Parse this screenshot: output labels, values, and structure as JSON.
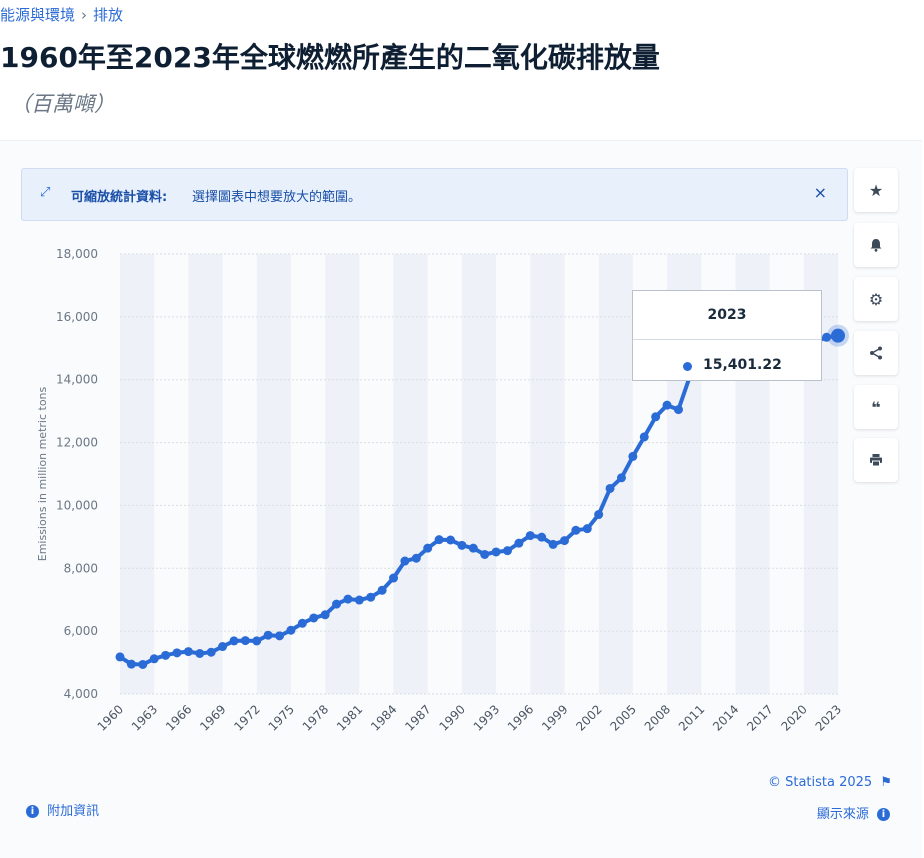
{
  "breadcrumb": {
    "parent": "能源與環境",
    "separator": "›",
    "current": "排放"
  },
  "title": "1960年至2023年全球燃燃所產生的二氧化碳排放量",
  "subtitle": "（百萬噸）",
  "zoom_banner": {
    "label": "可縮放統計資料",
    "text": "選擇圖表中想要放大的範圍。",
    "close": "×"
  },
  "tools": [
    {
      "name": "favorite",
      "icon": "★"
    },
    {
      "name": "alert",
      "icon": "bell"
    },
    {
      "name": "settings",
      "icon": "⚙"
    },
    {
      "name": "share",
      "icon": "share"
    },
    {
      "name": "cite",
      "icon": "❝"
    },
    {
      "name": "print",
      "icon": "print"
    }
  ],
  "tooltip": {
    "year": "2023",
    "value": "15,401.22"
  },
  "footer": {
    "more_info": "附加資訊",
    "copyright": "© Statista 2025",
    "show_source": "顯示來源"
  },
  "colors": {
    "accent": "#2b6bd6",
    "band": "#eef2f8"
  },
  "chart_data": {
    "type": "line",
    "title": "1960年至2023年全球燃燃所產生的二氧化碳排放量",
    "ylabel": "Emissions in million metric tons",
    "xlabel": "",
    "ylim": [
      4000,
      18000
    ],
    "yticks": [
      4000,
      6000,
      8000,
      10000,
      12000,
      14000,
      16000,
      18000
    ],
    "ytick_labels": [
      "4,000",
      "6,000",
      "8,000",
      "10,000",
      "12,000",
      "14,000",
      "16,000",
      "18,000"
    ],
    "xtick_labels": [
      "1960",
      "1963",
      "1966",
      "1969",
      "1972",
      "1975",
      "1978",
      "1981",
      "1984",
      "1987",
      "1990",
      "1993",
      "1996",
      "1999",
      "2002",
      "2005",
      "2008",
      "2011",
      "2014",
      "2017",
      "2020",
      "2023"
    ],
    "grid": true,
    "x": [
      1960,
      1961,
      1962,
      1963,
      1964,
      1965,
      1966,
      1967,
      1968,
      1969,
      1970,
      1971,
      1972,
      1973,
      1974,
      1975,
      1976,
      1977,
      1978,
      1979,
      1980,
      1981,
      1982,
      1983,
      1984,
      1985,
      1986,
      1987,
      1988,
      1989,
      1990,
      1991,
      1992,
      1993,
      1994,
      1995,
      1996,
      1997,
      1998,
      1999,
      2000,
      2001,
      2002,
      2003,
      2004,
      2005,
      2006,
      2007,
      2008,
      2009,
      2010,
      2011,
      2012,
      2013,
      2014,
      2015,
      2016,
      2017,
      2018,
      2019,
      2020,
      2021,
      2022,
      2023
    ],
    "series": [
      {
        "values": [
          5180,
          4950,
          4940,
          5120,
          5230,
          5310,
          5350,
          5290,
          5330,
          5510,
          5690,
          5700,
          5690,
          5870,
          5850,
          6030,
          6250,
          6420,
          6520,
          6860,
          7020,
          6990,
          7080,
          7300,
          7690,
          8230,
          8320,
          8640,
          8910,
          8900,
          8730,
          8640,
          8440,
          8520,
          8560,
          8800,
          9040,
          8990,
          8760,
          8880,
          9210,
          9260,
          9710,
          10540,
          10880,
          11560,
          12180,
          12820,
          13190,
          13050,
          14100,
          14700,
          15100,
          15300,
          15200,
          15250,
          15150,
          15300,
          15450,
          15500,
          15050,
          15200,
          15350,
          15401.22
        ]
      }
    ]
  }
}
